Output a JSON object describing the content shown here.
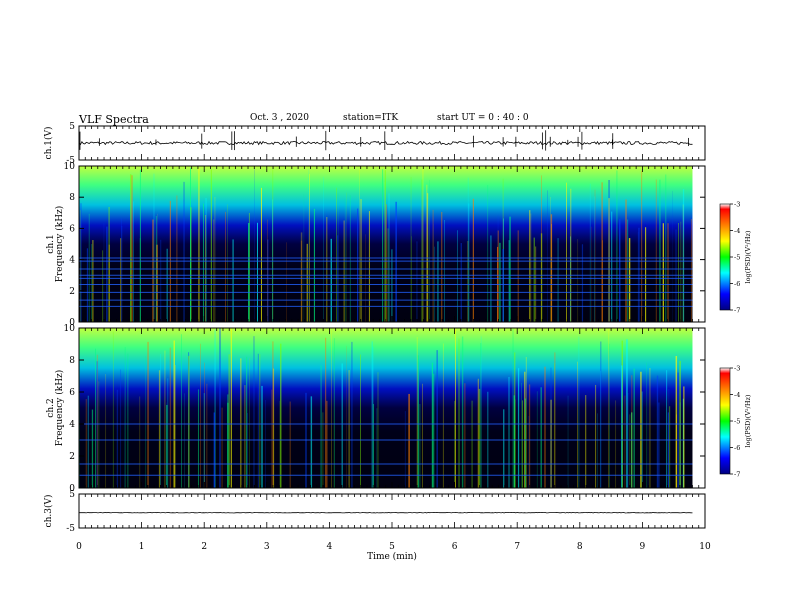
{
  "header": {
    "title": "VLF Spectra",
    "date": "Oct. 3  , 2020",
    "station": "station=ITK",
    "start": "start UT =  0 : 40 : 0"
  },
  "chart_data": [
    {
      "type": "line",
      "title": "",
      "xlabel": "",
      "ylabel": "ch.1(V)",
      "xlim": [
        0,
        10
      ],
      "ylim": [
        -5,
        5
      ],
      "y_ticks": [
        "5",
        "-5"
      ],
      "series": [
        {
          "values_description_only": false,
          "x": [
            0,
            9.8
          ],
          "y": [
            0,
            0
          ]
        }
      ]
    },
    {
      "type": "heatmap",
      "ylabel_line1": "ch.1",
      "ylabel_line2": "Frequency (kHz)",
      "xlim": [
        0,
        10
      ],
      "ylim": [
        0,
        10
      ],
      "y_ticks": [
        "0",
        "2",
        "4",
        "6",
        "8",
        "10"
      ],
      "colorbar": {
        "label": "log(PSD)(V²/Hz)",
        "ticks": [
          "-3",
          "-4",
          "-5",
          "-6",
          "-7"
        ],
        "range": [
          -7,
          -3
        ]
      }
    },
    {
      "type": "heatmap",
      "ylabel_line1": "ch.2",
      "ylabel_line2": "Frequency (kHz)",
      "xlim": [
        0,
        10
      ],
      "ylim": [
        0,
        10
      ],
      "y_ticks": [
        "0",
        "2",
        "4",
        "6",
        "8",
        "10"
      ],
      "colorbar": {
        "label": "log(PSD)(V²/Hz)",
        "ticks": [
          "-3",
          "-4",
          "-5",
          "-6",
          "-7"
        ],
        "range": [
          -7,
          -3
        ]
      }
    },
    {
      "type": "line",
      "ylabel": "ch.3(V)",
      "xlim": [
        0,
        10
      ],
      "ylim": [
        -5,
        5
      ],
      "y_ticks": [
        "5",
        "-5"
      ],
      "series": [
        {
          "x": [
            0,
            9.8
          ],
          "y": [
            -0.5,
            -0.5
          ]
        }
      ]
    }
  ],
  "x_axis": {
    "label": "Time  (min)",
    "ticks": [
      "0",
      "1",
      "2",
      "3",
      "4",
      "5",
      "6",
      "7",
      "8",
      "9",
      "10"
    ]
  },
  "colors": {
    "background": "#000020",
    "axis": "#000000"
  }
}
